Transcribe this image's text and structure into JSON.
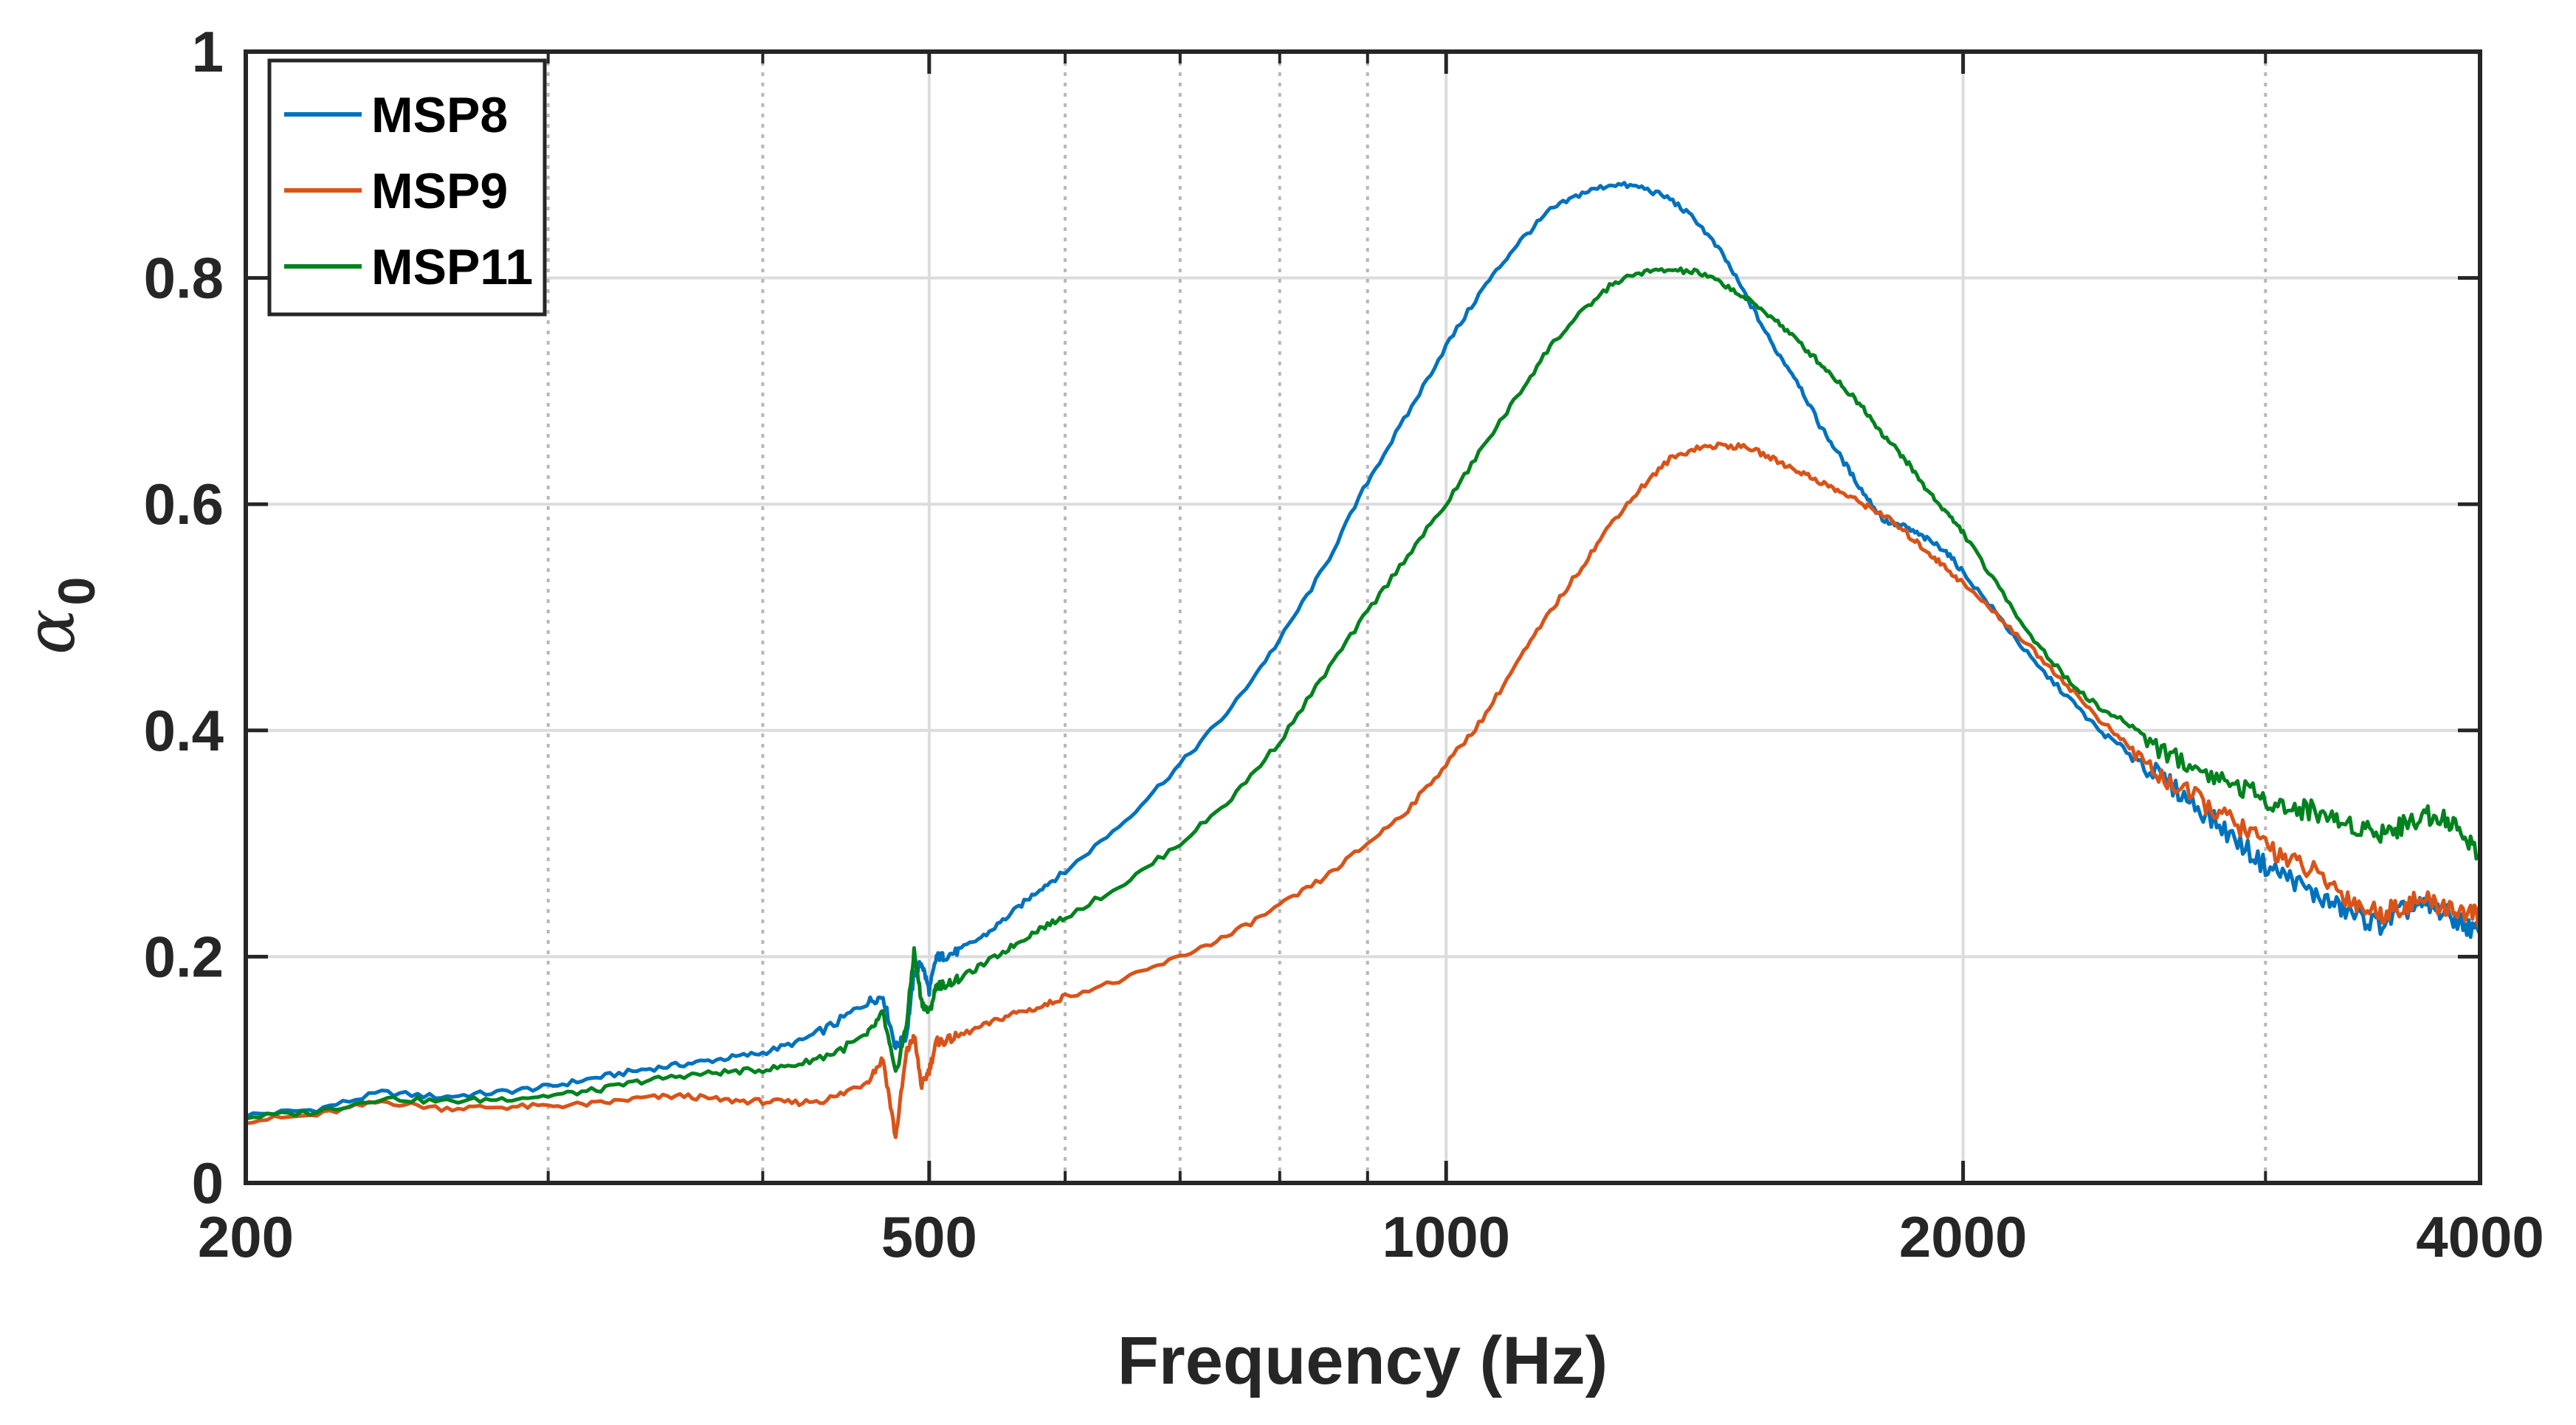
{
  "chart_data": {
    "type": "line",
    "title": "",
    "xlabel": "Frequency (Hz)",
    "ylabel": "α",
    "ylabel_subscript": "0",
    "xscale": "log",
    "xlim": [
      200,
      4000
    ],
    "ylim": [
      0,
      1
    ],
    "xticks": [
      200,
      500,
      1000,
      2000,
      4000
    ],
    "xtick_labels": [
      "200",
      "500",
      "1000",
      "2000",
      "4000"
    ],
    "yticks": [
      0,
      0.2,
      0.4,
      0.6,
      0.8,
      1
    ],
    "ytick_labels": [
      "0",
      "0.2",
      "0.4",
      "0.6",
      "0.8",
      "1"
    ],
    "major_grid_x": [
      500,
      1000,
      2000
    ],
    "minor_grid_x": [
      300,
      400,
      600,
      700,
      800,
      900,
      3000
    ],
    "grid": true,
    "legend_position": "top-left",
    "series": [
      {
        "name": "MSP8",
        "color": "#0072BD",
        "x": [
          200,
          220,
          240,
          260,
          280,
          300,
          320,
          340,
          360,
          380,
          400,
          420,
          440,
          460,
          470,
          478,
          485,
          490,
          495,
          500,
          505,
          510,
          520,
          540,
          560,
          580,
          600,
          650,
          700,
          750,
          800,
          850,
          900,
          950,
          1000,
          1050,
          1100,
          1150,
          1200,
          1250,
          1300,
          1350,
          1400,
          1450,
          1500,
          1550,
          1600,
          1650,
          1700,
          1750,
          1800,
          1850,
          1900,
          1950,
          2000,
          2100,
          2200,
          2300,
          2400,
          2500,
          2600,
          2700,
          2800,
          2900,
          3000,
          3100,
          3200,
          3300,
          3400,
          3500,
          3600,
          3700,
          3800,
          3900,
          4000
        ],
        "y": [
          0.06,
          0.065,
          0.08,
          0.076,
          0.08,
          0.085,
          0.093,
          0.1,
          0.105,
          0.11,
          0.115,
          0.125,
          0.14,
          0.16,
          0.165,
          0.12,
          0.13,
          0.185,
          0.195,
          0.17,
          0.2,
          0.2,
          0.205,
          0.22,
          0.24,
          0.26,
          0.275,
          0.32,
          0.37,
          0.42,
          0.48,
          0.545,
          0.62,
          0.68,
          0.74,
          0.79,
          0.83,
          0.86,
          0.875,
          0.883,
          0.88,
          0.87,
          0.85,
          0.82,
          0.78,
          0.74,
          0.71,
          0.67,
          0.64,
          0.61,
          0.585,
          0.58,
          0.57,
          0.56,
          0.54,
          0.5,
          0.46,
          0.43,
          0.4,
          0.38,
          0.36,
          0.34,
          0.32,
          0.3,
          0.28,
          0.27,
          0.255,
          0.245,
          0.235,
          0.228,
          0.24,
          0.245,
          0.24,
          0.23,
          0.22
        ]
      },
      {
        "name": "MSP9",
        "color": "#D95319",
        "x": [
          200,
          220,
          240,
          260,
          280,
          300,
          320,
          340,
          360,
          380,
          400,
          420,
          440,
          460,
          470,
          478,
          485,
          490,
          495,
          500,
          505,
          510,
          520,
          540,
          560,
          580,
          600,
          650,
          700,
          750,
          800,
          850,
          900,
          950,
          1000,
          1050,
          1100,
          1150,
          1200,
          1250,
          1300,
          1350,
          1400,
          1450,
          1500,
          1550,
          1600,
          1650,
          1700,
          1750,
          1800,
          1850,
          1900,
          1950,
          2000,
          2100,
          2200,
          2300,
          2400,
          2500,
          2600,
          2700,
          2800,
          2900,
          3000,
          3100,
          3200,
          3300,
          3400,
          3500,
          3600,
          3700,
          3800,
          3900,
          4000
        ],
        "y": [
          0.055,
          0.06,
          0.072,
          0.066,
          0.067,
          0.068,
          0.07,
          0.075,
          0.077,
          0.073,
          0.072,
          0.071,
          0.075,
          0.09,
          0.11,
          0.04,
          0.115,
          0.13,
          0.085,
          0.1,
          0.125,
          0.125,
          0.13,
          0.14,
          0.15,
          0.155,
          0.165,
          0.18,
          0.2,
          0.22,
          0.245,
          0.27,
          0.3,
          0.33,
          0.37,
          0.41,
          0.46,
          0.505,
          0.545,
          0.585,
          0.615,
          0.64,
          0.65,
          0.652,
          0.65,
          0.64,
          0.63,
          0.62,
          0.61,
          0.6,
          0.59,
          0.575,
          0.56,
          0.545,
          0.53,
          0.5,
          0.47,
          0.44,
          0.41,
          0.385,
          0.36,
          0.345,
          0.33,
          0.315,
          0.3,
          0.285,
          0.275,
          0.26,
          0.245,
          0.238,
          0.245,
          0.25,
          0.245,
          0.24,
          0.235
        ]
      },
      {
        "name": "MSP11",
        "color": "#00821E",
        "x": [
          200,
          220,
          240,
          260,
          280,
          300,
          320,
          340,
          360,
          380,
          400,
          420,
          440,
          460,
          470,
          478,
          485,
          490,
          495,
          500,
          505,
          510,
          520,
          540,
          560,
          580,
          600,
          650,
          700,
          750,
          800,
          850,
          900,
          950,
          1000,
          1050,
          1100,
          1150,
          1200,
          1250,
          1300,
          1350,
          1400,
          1450,
          1500,
          1550,
          1600,
          1650,
          1700,
          1750,
          1800,
          1850,
          1900,
          1950,
          2000,
          2100,
          2200,
          2300,
          2400,
          2500,
          2600,
          2700,
          2800,
          2900,
          3000,
          3100,
          3200,
          3300,
          3400,
          3500,
          3600,
          3700,
          3800,
          3900,
          4000
        ],
        "y": [
          0.058,
          0.063,
          0.075,
          0.072,
          0.074,
          0.077,
          0.082,
          0.09,
          0.095,
          0.098,
          0.1,
          0.105,
          0.115,
          0.13,
          0.15,
          0.095,
          0.14,
          0.205,
          0.16,
          0.15,
          0.175,
          0.175,
          0.18,
          0.195,
          0.21,
          0.225,
          0.235,
          0.265,
          0.3,
          0.34,
          0.39,
          0.45,
          0.505,
          0.555,
          0.6,
          0.65,
          0.695,
          0.74,
          0.77,
          0.795,
          0.805,
          0.807,
          0.805,
          0.795,
          0.78,
          0.765,
          0.745,
          0.725,
          0.705,
          0.685,
          0.66,
          0.64,
          0.615,
          0.595,
          0.575,
          0.525,
          0.48,
          0.445,
          0.42,
          0.405,
          0.385,
          0.37,
          0.36,
          0.35,
          0.34,
          0.33,
          0.33,
          0.32,
          0.315,
          0.31,
          0.315,
          0.325,
          0.325,
          0.31,
          0.29
        ]
      }
    ]
  }
}
